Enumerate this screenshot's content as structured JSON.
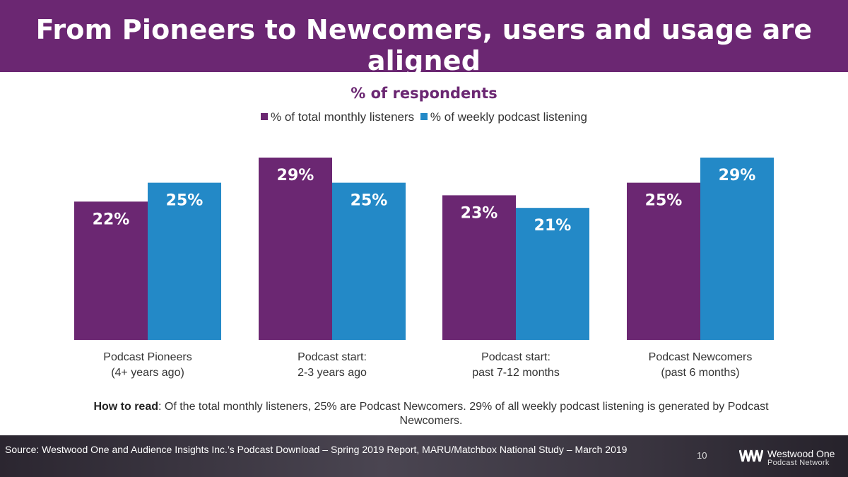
{
  "header": {
    "title": "From Pioneers to Newcomers, users and usage are aligned"
  },
  "colors": {
    "purple": "#6b2772",
    "blue": "#2389c7"
  },
  "chart_data": {
    "type": "bar",
    "title": "% of respondents",
    "categories": [
      [
        "Podcast Pioneers",
        "(4+ years ago)"
      ],
      [
        "Podcast start:",
        "2-3 years ago"
      ],
      [
        "Podcast start:",
        "past 7-12 months"
      ],
      [
        "Podcast Newcomers",
        "(past 6 months)"
      ]
    ],
    "series": [
      {
        "name": "% of total monthly listeners",
        "values": [
          22,
          29,
          23,
          25
        ],
        "labels": [
          "22%",
          "29%",
          "23%",
          "25%"
        ]
      },
      {
        "name": "% of weekly podcast listening",
        "values": [
          25,
          25,
          21,
          29
        ],
        "labels": [
          "25%",
          "25%",
          "21%",
          "29%"
        ]
      }
    ],
    "ylim": [
      0,
      29
    ],
    "legend_position": "top-center",
    "grid": false
  },
  "note": {
    "label": "How to read",
    "text": ": Of the total monthly listeners, 25% are Podcast Newcomers. 29% of all weekly podcast listening is generated by Podcast Newcomers."
  },
  "footer": {
    "source": "Source: Westwood One and Audience Insights Inc.’s Podcast Download – Spring 2019 Report, MARU/Matchbox National Study – March 2019",
    "page": "10",
    "logo_name": "Westwood One",
    "logo_sub": "Podcast Network"
  }
}
